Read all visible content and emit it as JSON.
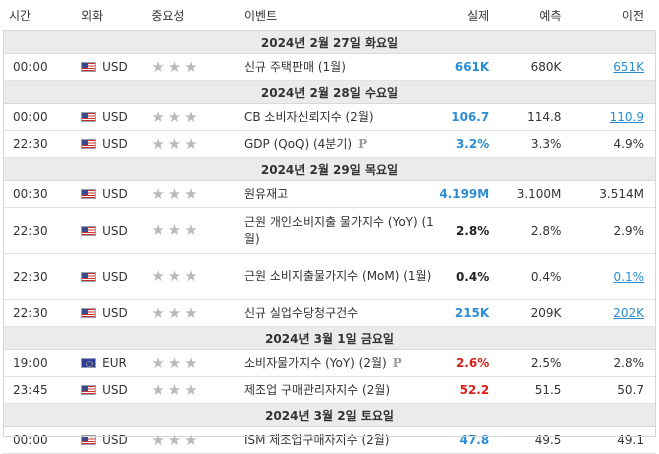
{
  "headers": {
    "time": "시간",
    "currency": "외화",
    "importance": "중요성",
    "event": "이벤트",
    "actual": "실제",
    "forecast": "예측",
    "previous": "이전"
  },
  "days": [
    {
      "label": "2024년 2월 27일 화요일",
      "events": [
        {
          "time": "00:00",
          "flag": "us",
          "currency": "USD",
          "name": "신규 주택판매 (1월)",
          "preliminary": false,
          "actual": "661K",
          "actual_state": "pos",
          "forecast": "680K",
          "previous": "651K",
          "previous_revised": true
        }
      ]
    },
    {
      "label": "2024년 2월 28일 수요일",
      "events": [
        {
          "time": "00:00",
          "flag": "us",
          "currency": "USD",
          "name": "CB 소비자신뢰지수 (2월)",
          "preliminary": false,
          "actual": "106.7",
          "actual_state": "pos",
          "forecast": "114.8",
          "previous": "110.9",
          "previous_revised": true
        },
        {
          "time": "22:30",
          "flag": "us",
          "currency": "USD",
          "name": "GDP (QoQ) (4분기)",
          "preliminary": true,
          "preliminary_mark": "P",
          "actual": "3.2%",
          "actual_state": "pos",
          "forecast": "3.3%",
          "previous": "4.9%",
          "previous_revised": false
        }
      ]
    },
    {
      "label": "2024년 2월 29일 목요일",
      "events": [
        {
          "time": "00:30",
          "flag": "us",
          "currency": "USD",
          "name": "원유재고",
          "preliminary": false,
          "actual": "4.199M",
          "actual_state": "pos",
          "forecast": "3.100M",
          "previous": "3.514M",
          "previous_revised": false
        },
        {
          "time": "22:30",
          "flag": "us",
          "currency": "USD",
          "name": "근원 개인소비지출 물가지수 (YoY) (1월)",
          "preliminary": false,
          "tall": true,
          "actual": "2.8%",
          "actual_state": "neu",
          "forecast": "2.8%",
          "previous": "2.9%",
          "previous_revised": false
        },
        {
          "time": "22:30",
          "flag": "us",
          "currency": "USD",
          "name": "근원 소비지출물가지수 (MoM) (1월)",
          "preliminary": false,
          "tall": true,
          "actual": "0.4%",
          "actual_state": "neu",
          "forecast": "0.4%",
          "previous": "0.1%",
          "previous_revised": true
        },
        {
          "time": "22:30",
          "flag": "us",
          "currency": "USD",
          "name": "신규 실업수당청구건수",
          "preliminary": false,
          "actual": "215K",
          "actual_state": "pos",
          "forecast": "209K",
          "previous": "202K",
          "previous_revised": true
        }
      ]
    },
    {
      "label": "2024년 3월 1일 금요일",
      "events": [
        {
          "time": "19:00",
          "flag": "eu",
          "currency": "EUR",
          "name": "소비자물가지수 (YoY) (2월)",
          "preliminary": true,
          "preliminary_mark": "P",
          "actual": "2.6%",
          "actual_state": "neg",
          "forecast": "2.5%",
          "previous": "2.8%",
          "previous_revised": false
        },
        {
          "time": "23:45",
          "flag": "us",
          "currency": "USD",
          "name": "제조업 구매관리자지수 (2월)",
          "preliminary": false,
          "actual": "52.2",
          "actual_state": "neg",
          "forecast": "51.5",
          "previous": "50.7",
          "previous_revised": false
        }
      ]
    },
    {
      "label": "2024년 3월 2일 토요일",
      "events": [
        {
          "time": "00:00",
          "flag": "us",
          "currency": "USD",
          "name": "ISM 제조업구매자지수 (2월)",
          "preliminary": false,
          "actual": "47.8",
          "actual_state": "pos",
          "forecast": "49.5",
          "previous": "49.1",
          "previous_revised": false
        }
      ]
    }
  ],
  "importance_stars": 3,
  "colors": {
    "positive": "#2a8dd4",
    "negative": "#d91e18",
    "star": "#b9b9b9",
    "day_header_bg": "#ebebeb"
  }
}
